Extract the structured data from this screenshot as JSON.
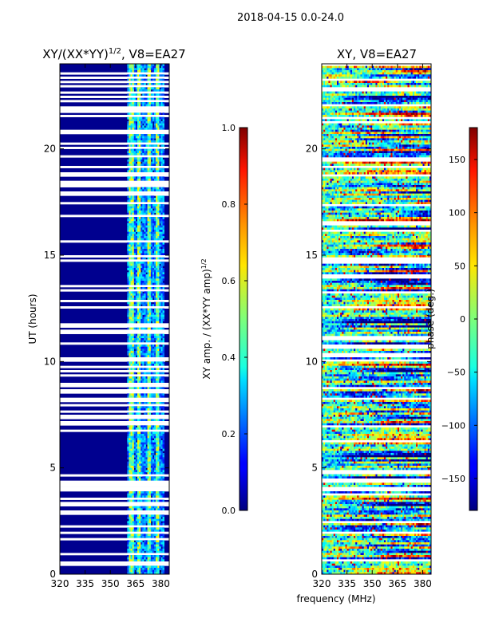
{
  "figure_title": "2018-04-15 0.0-24.0",
  "chart_data": [
    {
      "type": "heatmap",
      "title_main": "XY/(XX*YY)",
      "title_exponent": "1/2",
      "title_suffix": ", V8=EA27",
      "ylabel": "UT (hours)",
      "xlim": [
        320,
        385
      ],
      "ylim": [
        0,
        24
      ],
      "xticks": [
        320,
        335,
        350,
        365,
        380
      ],
      "yticks": [
        0,
        5,
        10,
        15,
        20
      ],
      "colorbar": {
        "label_main": "XY amp. / (XX*YY amp)",
        "label_exponent": "1/2",
        "range": [
          0.0,
          1.0
        ],
        "ticks": [
          "0.0",
          "0.2",
          "0.4",
          "0.6",
          "0.8",
          "1.0"
        ],
        "colormap": "jet"
      }
    },
    {
      "type": "heatmap",
      "title": "XY, V8=EA27",
      "xlabel": "frequency (MHz)",
      "xlim": [
        320,
        385
      ],
      "ylim": [
        0,
        24
      ],
      "xticks": [
        320,
        335,
        350,
        365,
        380
      ],
      "yticks": [
        0,
        5,
        10,
        15,
        20
      ],
      "colorbar": {
        "label": "phase (deg.)",
        "range": [
          -180,
          180
        ],
        "ticks": [
          "150",
          "100",
          "50",
          "0",
          "−50",
          "−100",
          "−150"
        ],
        "colormap": "jet"
      }
    }
  ]
}
